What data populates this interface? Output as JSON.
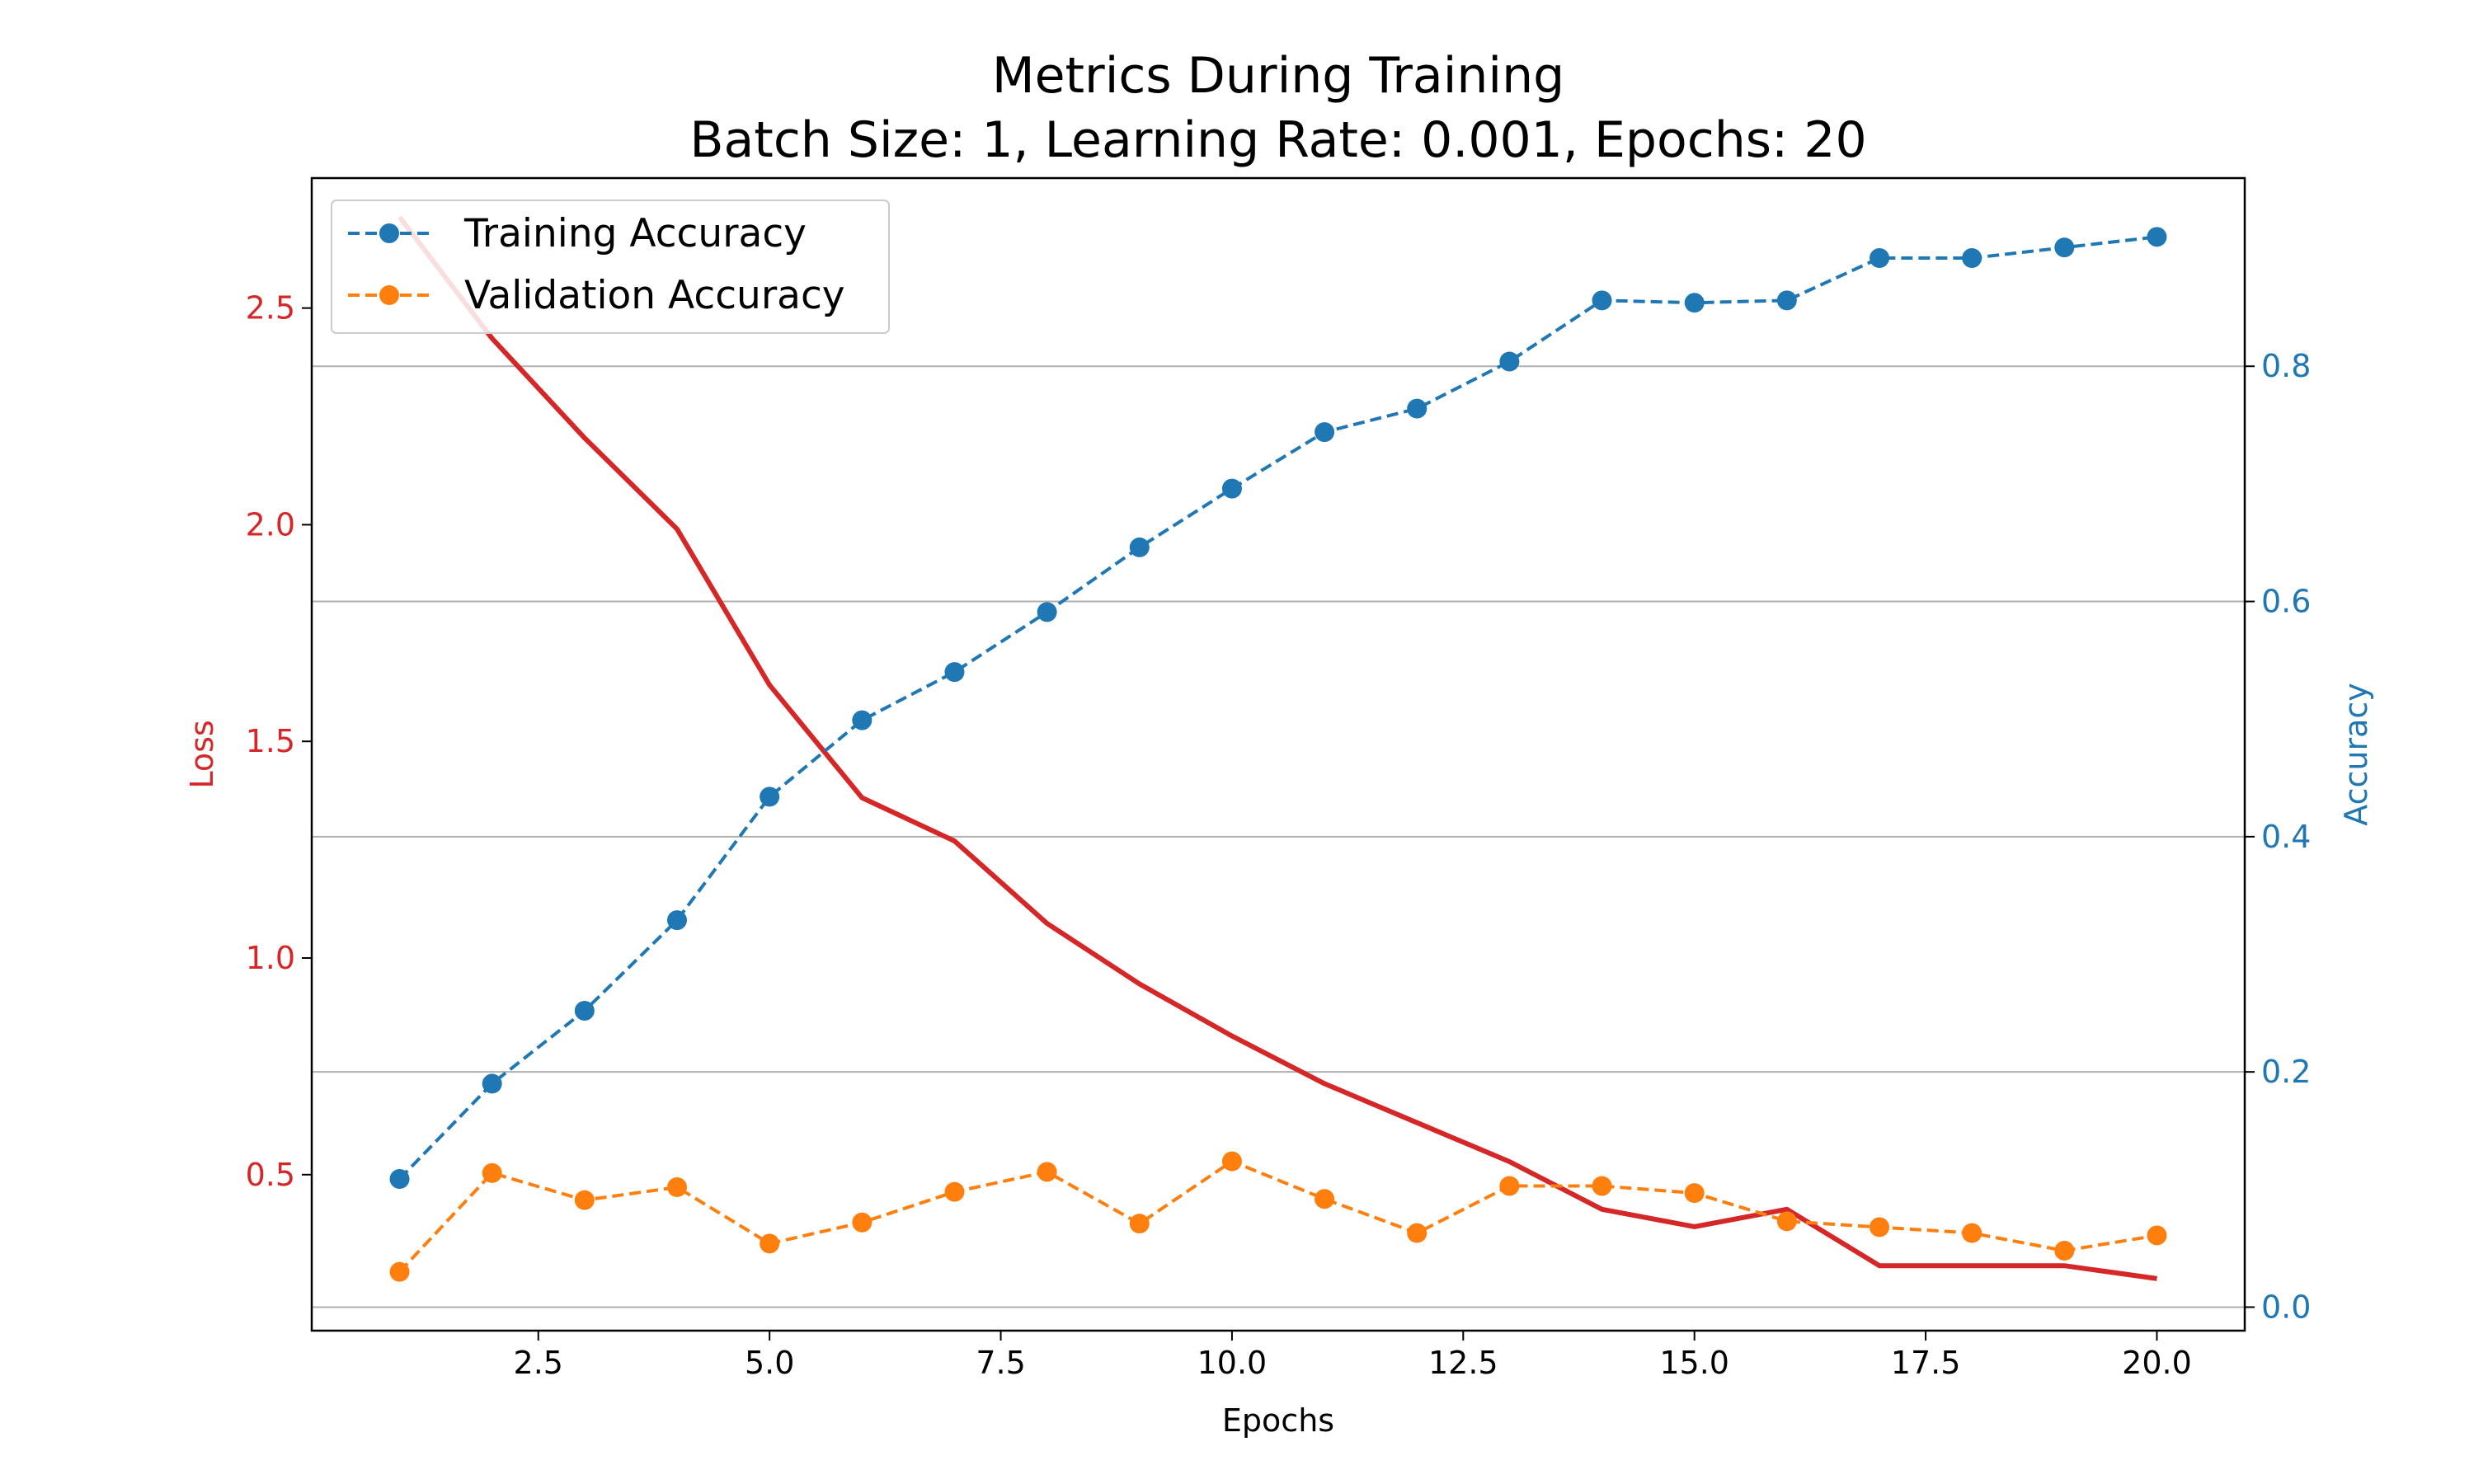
{
  "chart_data": {
    "type": "line",
    "title": "Metrics During Training",
    "subtitle": "Batch Size: 1, Learning Rate: 0.001, Epochs: 20",
    "xlabel": "Epochs",
    "ylabel_left": "Loss",
    "ylabel_right": "Accuracy",
    "xlim": [
      0.05,
      20.95
    ],
    "ylim_left": [
      0.14,
      2.8
    ],
    "ylim_right": [
      -0.02,
      0.96
    ],
    "x_ticks": [
      "2.5",
      "5.0",
      "7.5",
      "10.0",
      "12.5",
      "15.0",
      "17.5",
      "20.0"
    ],
    "y_left_ticks": [
      "0.5",
      "1.0",
      "1.5",
      "2.0",
      "2.5"
    ],
    "y_right_ticks": [
      "0.0",
      "0.2",
      "0.4",
      "0.6",
      "0.8"
    ],
    "grid": "horizontal (right axis)",
    "legend_position": "top-left",
    "x": [
      1,
      2,
      3,
      4,
      5,
      6,
      7,
      8,
      9,
      10,
      11,
      12,
      13,
      14,
      15,
      16,
      17,
      18,
      19,
      20
    ],
    "series": [
      {
        "name": "",
        "axis": "left",
        "style": "solid",
        "color": "#d62728",
        "values": [
          2.71,
          2.43,
          2.2,
          1.99,
          1.63,
          1.37,
          1.27,
          1.08,
          0.94,
          0.82,
          0.71,
          0.62,
          0.53,
          0.42,
          0.38,
          0.42,
          0.29,
          0.29,
          0.29,
          0.26
        ]
      },
      {
        "name": "Training Accuracy",
        "axis": "right",
        "style": "dashed",
        "marker": "circle",
        "color": "#1f77b4",
        "values": [
          0.109,
          0.19,
          0.252,
          0.329,
          0.434,
          0.499,
          0.54,
          0.591,
          0.646,
          0.696,
          0.744,
          0.764,
          0.804,
          0.856,
          0.854,
          0.856,
          0.892,
          0.892,
          0.901,
          0.91
        ]
      },
      {
        "name": "Validation Accuracy",
        "axis": "right",
        "style": "dashed",
        "marker": "circle",
        "color": "#ff7f0e",
        "values": [
          0.03,
          0.114,
          0.091,
          0.102,
          0.054,
          0.072,
          0.098,
          0.115,
          0.071,
          0.124,
          0.092,
          0.063,
          0.103,
          0.103,
          0.097,
          0.073,
          0.068,
          0.063,
          0.048,
          0.061
        ]
      }
    ]
  },
  "colors": {
    "loss": "#d62728",
    "accuracy": "#1f77b4",
    "validation": "#ff7f0e",
    "grid": "#b0b0b0"
  }
}
